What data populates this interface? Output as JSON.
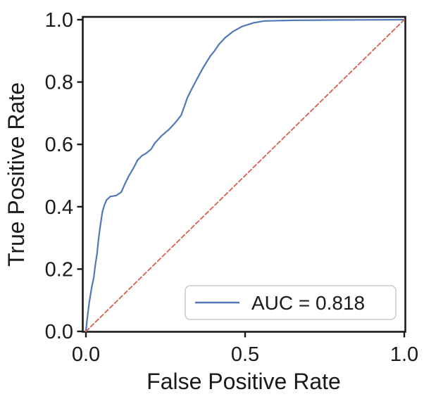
{
  "figure": {
    "background": "#ffffff",
    "text_color": "#1a1a1a",
    "spine_color": "#1a1a1a"
  },
  "chart_data": {
    "type": "line",
    "title": "",
    "xlabel": "False Positive Rate",
    "ylabel": "True Positive Rate",
    "xlim": [
      0.0,
      1.0
    ],
    "ylim": [
      0.0,
      1.0
    ],
    "grid": false,
    "x_ticks": [
      0.0,
      0.5,
      1.0
    ],
    "x_tick_labels": [
      "0.0",
      "0.5",
      "1.0"
    ],
    "y_ticks": [
      0.0,
      0.2,
      0.4,
      0.6,
      0.8,
      1.0
    ],
    "y_tick_labels": [
      "0.0",
      "0.2",
      "0.4",
      "0.6",
      "0.8",
      "1.0"
    ],
    "auc": 0.818,
    "legend": {
      "position": "lower right",
      "entries": [
        {
          "label": "AUC = 0.818",
          "color": "#5278b8",
          "line_style": "solid"
        }
      ],
      "border_color": "#cccccc",
      "background": "#ffffff"
    },
    "series": [
      {
        "name": "roc-curve",
        "color": "#5278b8",
        "line_style": "solid",
        "points": [
          [
            0.0,
            0.0
          ],
          [
            0.004,
            0.04
          ],
          [
            0.01,
            0.09
          ],
          [
            0.018,
            0.14
          ],
          [
            0.025,
            0.175
          ],
          [
            0.029,
            0.21
          ],
          [
            0.035,
            0.25
          ],
          [
            0.04,
            0.3
          ],
          [
            0.046,
            0.345
          ],
          [
            0.052,
            0.385
          ],
          [
            0.058,
            0.405
          ],
          [
            0.065,
            0.422
          ],
          [
            0.077,
            0.433
          ],
          [
            0.095,
            0.436
          ],
          [
            0.111,
            0.447
          ],
          [
            0.122,
            0.472
          ],
          [
            0.135,
            0.499
          ],
          [
            0.15,
            0.525
          ],
          [
            0.162,
            0.549
          ],
          [
            0.175,
            0.563
          ],
          [
            0.19,
            0.572
          ],
          [
            0.205,
            0.585
          ],
          [
            0.217,
            0.605
          ],
          [
            0.237,
            0.627
          ],
          [
            0.261,
            0.648
          ],
          [
            0.281,
            0.67
          ],
          [
            0.299,
            0.693
          ],
          [
            0.31,
            0.724
          ],
          [
            0.318,
            0.748
          ],
          [
            0.332,
            0.777
          ],
          [
            0.35,
            0.812
          ],
          [
            0.366,
            0.842
          ],
          [
            0.38,
            0.866
          ],
          [
            0.392,
            0.885
          ],
          [
            0.404,
            0.9
          ],
          [
            0.418,
            0.921
          ],
          [
            0.437,
            0.942
          ],
          [
            0.462,
            0.962
          ],
          [
            0.49,
            0.978
          ],
          [
            0.527,
            0.99
          ],
          [
            0.56,
            0.996
          ],
          [
            0.65,
            0.998
          ],
          [
            0.8,
            0.999
          ],
          [
            1.0,
            1.0
          ]
        ]
      },
      {
        "name": "chance-diagonal",
        "color": "#d8604f",
        "line_style": "dashed",
        "points": [
          [
            0.0,
            0.0
          ],
          [
            1.0,
            1.0
          ]
        ]
      }
    ]
  }
}
